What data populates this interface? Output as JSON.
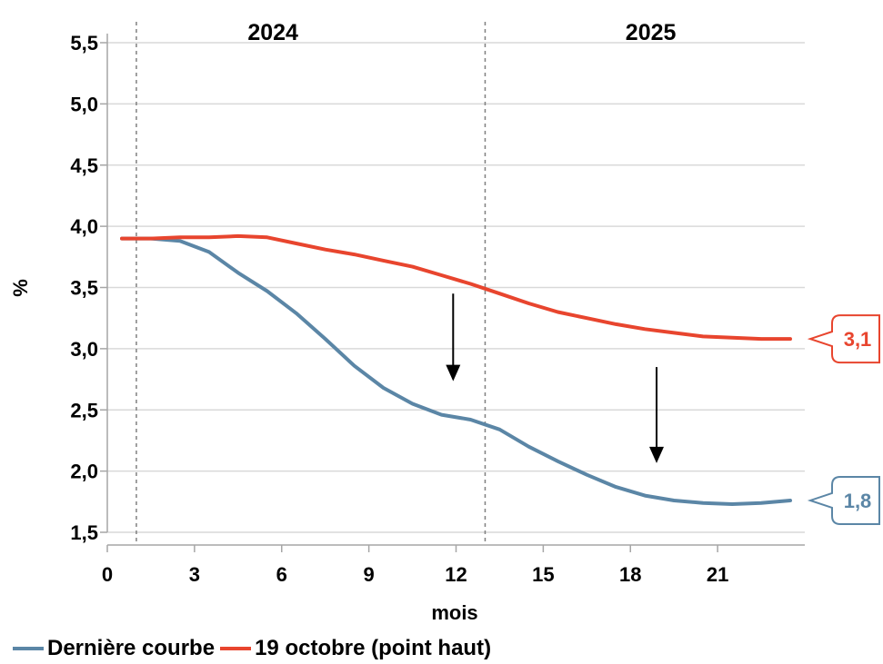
{
  "chart_data": {
    "type": "line",
    "ylabel": "%",
    "xlabel": "mois",
    "xlim": [
      0,
      24
    ],
    "ylim": [
      1.5,
      5.5
    ],
    "x_ticks": [
      0,
      3,
      6,
      9,
      12,
      15,
      18,
      21
    ],
    "x_tick_labels": [
      "0",
      "3",
      "6",
      "9",
      "12",
      "15",
      "18",
      "21"
    ],
    "y_ticks": [
      1.5,
      2.0,
      2.5,
      3.0,
      3.5,
      4.0,
      4.5,
      5.0,
      5.5
    ],
    "y_tick_labels": [
      "1,5",
      "2,0",
      "2,5",
      "3,0",
      "3,5",
      "4,0",
      "4,5",
      "5,0",
      "5,5"
    ],
    "grid": "horizontal",
    "year_labels": [
      {
        "label": "2024",
        "x": 5.7
      },
      {
        "label": "2025",
        "x": 18.7
      }
    ],
    "year_dividers": [
      1,
      13
    ],
    "arrows": [
      {
        "x": 11.9,
        "from": 3.45,
        "to": 2.75
      },
      {
        "x": 18.9,
        "from": 2.85,
        "to": 2.08
      }
    ],
    "series": [
      {
        "name": "Dernière courbe",
        "color": "#5b86a6",
        "end_label": "1,8",
        "x": [
          0.5,
          1.5,
          2.5,
          3.5,
          4.5,
          5.5,
          6.5,
          7.5,
          8.5,
          9.5,
          10.5,
          11.5,
          12.5,
          13.5,
          14.5,
          15.5,
          16.5,
          17.5,
          18.5,
          19.5,
          20.5,
          21.5,
          22.5,
          23.5
        ],
        "values": [
          3.9,
          3.9,
          3.88,
          3.79,
          3.62,
          3.47,
          3.29,
          3.08,
          2.86,
          2.68,
          2.55,
          2.46,
          2.42,
          2.34,
          2.2,
          2.08,
          1.97,
          1.87,
          1.8,
          1.76,
          1.74,
          1.73,
          1.74,
          1.76
        ]
      },
      {
        "name": "19 octobre (point haut)",
        "color": "#e8452e",
        "end_label": "3,1",
        "x": [
          0.5,
          1.5,
          2.5,
          3.5,
          4.5,
          5.5,
          6.5,
          7.5,
          8.5,
          9.5,
          10.5,
          11.5,
          12.5,
          13.5,
          14.5,
          15.5,
          16.5,
          17.5,
          18.5,
          19.5,
          20.5,
          21.5,
          22.5,
          23.5
        ],
        "values": [
          3.9,
          3.9,
          3.91,
          3.91,
          3.92,
          3.91,
          3.86,
          3.81,
          3.77,
          3.72,
          3.67,
          3.6,
          3.53,
          3.45,
          3.37,
          3.3,
          3.25,
          3.2,
          3.16,
          3.13,
          3.1,
          3.09,
          3.08,
          3.08
        ]
      }
    ]
  }
}
